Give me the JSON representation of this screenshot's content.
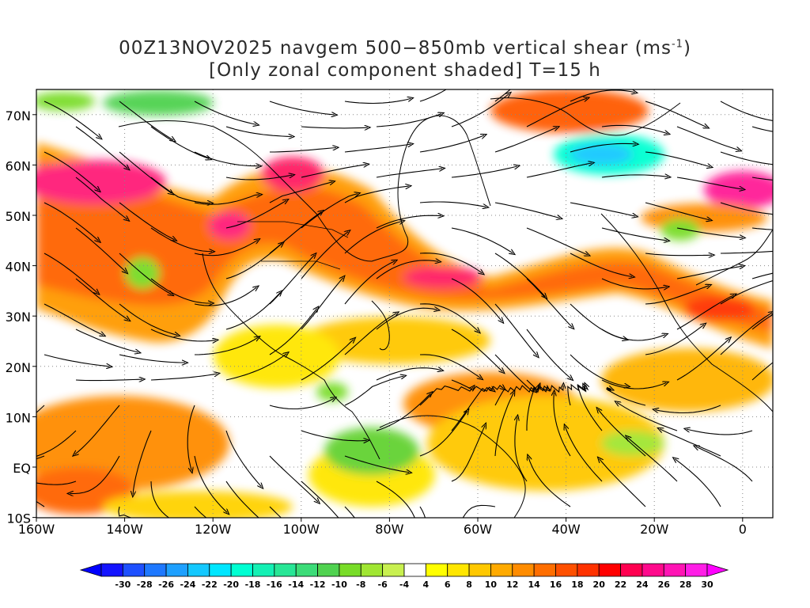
{
  "title": {
    "line1_main": "00Z13NOV2025 navgem 500−850mb vertical shear (ms",
    "line1_sup": "-1",
    "line1_end": ")",
    "line2": "[Only zonal component shaded] T=15 h"
  },
  "axes": {
    "lat_labels": [
      "70N",
      "60N",
      "50N",
      "40N",
      "30N",
      "20N",
      "10N",
      "EQ",
      "10S"
    ],
    "lon_labels": [
      "160W",
      "140W",
      "120W",
      "100W",
      "80W",
      "60W",
      "40W",
      "20W",
      "0"
    ]
  },
  "colorbar": {
    "labels": [
      "-30",
      "-28",
      "-26",
      "-24",
      "-22",
      "-20",
      "-18",
      "-16",
      "-14",
      "-12",
      "-10",
      "-8",
      "-6",
      "-4",
      "4",
      "6",
      "8",
      "10",
      "12",
      "14",
      "16",
      "18",
      "20",
      "22",
      "24",
      "26",
      "28",
      "30"
    ],
    "colors": [
      "#1414ff",
      "#1e50ff",
      "#1e78ff",
      "#1ea0ff",
      "#14c8ff",
      "#00e6ff",
      "#00ffd2",
      "#14f0b4",
      "#28e696",
      "#3cdc78",
      "#50d250",
      "#78dc28",
      "#a0e632",
      "#c8f050",
      "#ffffff",
      "#ffff00",
      "#ffe600",
      "#ffc800",
      "#ffaa00",
      "#ff8c00",
      "#ff6e00",
      "#ff5000",
      "#ff3200",
      "#ff0000",
      "#ff0050",
      "#ff0a8c",
      "#ff14b4",
      "#ff1ee6"
    ],
    "left_arrow_color": "#0000ff",
    "right_arrow_color": "#ff00ff"
  }
}
